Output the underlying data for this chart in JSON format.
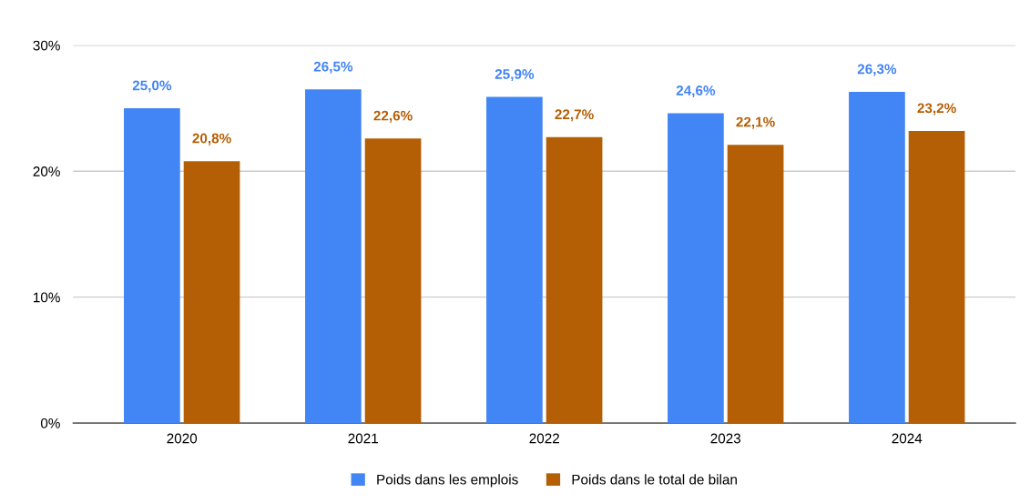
{
  "chart_data": {
    "type": "bar",
    "categories": [
      "2020",
      "2021",
      "2022",
      "2023",
      "2024"
    ],
    "series": [
      {
        "name": "Poids dans les emplois",
        "color": "#4285f4",
        "values": [
          25.0,
          26.5,
          25.9,
          24.6,
          26.3
        ],
        "value_labels": [
          "25,0%",
          "26,5%",
          "25,9%",
          "24,6%",
          "26,3%"
        ]
      },
      {
        "name": "Poids dans le total de bilan",
        "color": "#b45f06",
        "values": [
          20.8,
          22.6,
          22.7,
          22.1,
          23.2
        ],
        "value_labels": [
          "20,8%",
          "22,6%",
          "22,7%",
          "22,1%",
          "23,2%"
        ]
      }
    ],
    "ylim": [
      0,
      30
    ],
    "yticks": [
      {
        "value": 0,
        "label": "0%"
      },
      {
        "value": 10,
        "label": "10%"
      },
      {
        "value": 20,
        "label": "20%"
      },
      {
        "value": 30,
        "label": "30%"
      }
    ],
    "grid": "y",
    "legend": "bottom"
  }
}
